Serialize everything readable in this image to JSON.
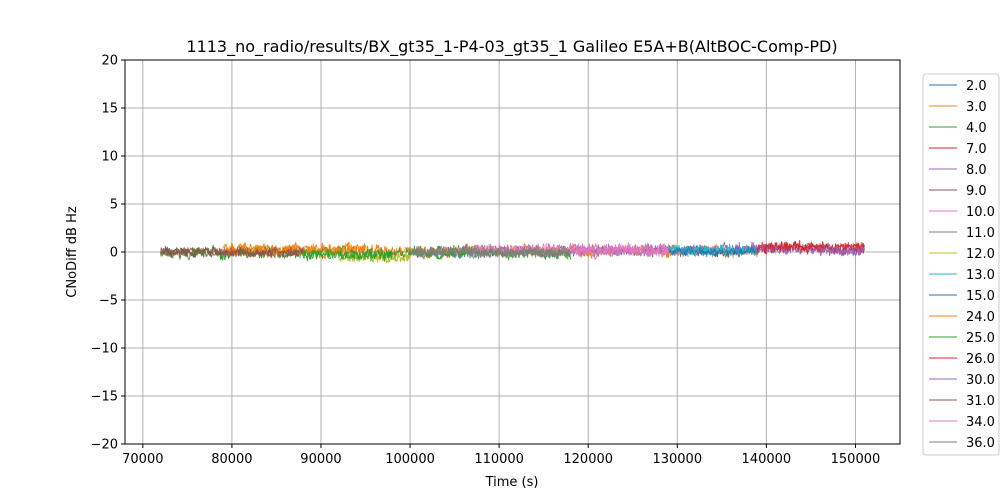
{
  "chart_data": {
    "type": "line",
    "title": "1113_no_radio/results/BX_gt35_1-P4-03_gt35_1 Galileo E5A+B(AltBOC-Comp-PD)",
    "xlabel": "Time (s)",
    "ylabel": "CNoDiff dB Hz",
    "xlim": [
      68000,
      155000
    ],
    "ylim": [
      -20,
      20
    ],
    "xticks": [
      70000,
      80000,
      90000,
      100000,
      110000,
      120000,
      130000,
      140000,
      150000
    ],
    "yticks": [
      -20,
      -15,
      -10,
      -5,
      0,
      5,
      10,
      15,
      20
    ],
    "grid": true,
    "legend_position": "right-outside",
    "series": [
      {
        "name": "2.0",
        "color": "#1f77b4",
        "x_range": [
          100000,
          139000
        ],
        "center": 0.1,
        "noise": 0.45
      },
      {
        "name": "3.0",
        "color": "#ff7f0e",
        "x_range": [
          79000,
          139000
        ],
        "center": 0.1,
        "noise": 0.55
      },
      {
        "name": "4.0",
        "color": "#2ca02c",
        "x_range": [
          72000,
          118000
        ],
        "center": -0.1,
        "noise": 0.55
      },
      {
        "name": "7.0",
        "color": "#d62728",
        "x_range": [
          139000,
          151000
        ],
        "center": 0.4,
        "noise": 0.5
      },
      {
        "name": "8.0",
        "color": "#9467bd",
        "x_range": [
          118000,
          151000
        ],
        "center": 0.3,
        "noise": 0.5
      },
      {
        "name": "9.0",
        "color": "#8c564b",
        "x_range": [
          72000,
          88000
        ],
        "center": 0.0,
        "noise": 0.45
      },
      {
        "name": "10.0",
        "color": "#e377c2",
        "x_range": [
          107000,
          129000
        ],
        "center": 0.3,
        "noise": 0.55
      },
      {
        "name": "11.0",
        "color": "#7f7f7f",
        "x_range": [
          100000,
          118000
        ],
        "center": 0.0,
        "noise": 0.45
      },
      {
        "name": "12.0",
        "color": "#bcbd22",
        "x_range": [
          92000,
          100000
        ],
        "center": -0.6,
        "noise": 0.45
      },
      {
        "name": "13.0",
        "color": "#17becf",
        "x_range": [
          129000,
          139000
        ],
        "center": 0.2,
        "noise": 0.45
      },
      {
        "name": "15.0",
        "color": "#1f77b4",
        "x_range": [
          129000,
          139000
        ],
        "center": 0.0,
        "noise": 0.4
      },
      {
        "name": "24.0",
        "color": "#ff7f0e",
        "x_range": [
          79000,
          95000
        ],
        "center": 0.3,
        "noise": 0.5
      },
      {
        "name": "25.0",
        "color": "#2ca02c",
        "x_range": [
          88000,
          98000
        ],
        "center": -0.3,
        "noise": 0.5
      },
      {
        "name": "26.0",
        "color": "#d62728",
        "x_range": [
          139000,
          151000
        ],
        "center": 0.5,
        "noise": 0.5
      },
      {
        "name": "30.0",
        "color": "#9467bd",
        "x_range": [
          146000,
          151000
        ],
        "center": 0.2,
        "noise": 0.5
      },
      {
        "name": "31.0",
        "color": "#8c564b",
        "x_range": [
          72000,
          88000
        ],
        "center": 0.0,
        "noise": 0.45
      },
      {
        "name": "34.0",
        "color": "#e377c2",
        "x_range": [
          118000,
          129000
        ],
        "center": 0.0,
        "noise": 0.5
      },
      {
        "name": "36.0",
        "color": "#7f7f7f",
        "x_range": [
          100000,
          118000
        ],
        "center": -0.1,
        "noise": 0.45
      }
    ]
  }
}
